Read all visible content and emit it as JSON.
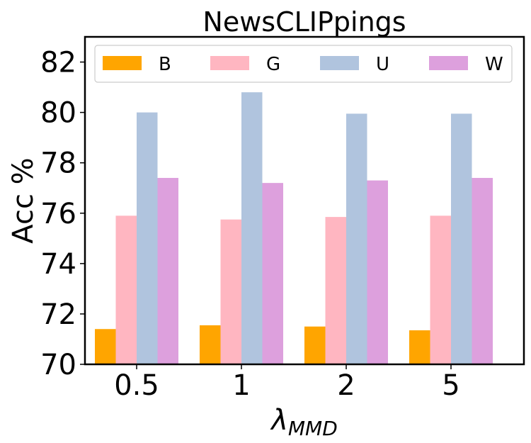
{
  "chart_data": {
    "type": "bar",
    "title": "NewsCLIPpings",
    "xlabel_main": "λ",
    "xlabel_sub": "MMD",
    "ylabel": "Acc %",
    "categories": [
      "0.5",
      "1",
      "2",
      "5"
    ],
    "ylim": [
      70,
      83
    ],
    "yticks": [
      70,
      72,
      74,
      76,
      78,
      80,
      82
    ],
    "grid": false,
    "legend_position": "top",
    "series": [
      {
        "name": "B",
        "color": "#FFA500",
        "values": [
          71.4,
          71.55,
          71.5,
          71.35
        ]
      },
      {
        "name": "G",
        "color": "#FFB6C1",
        "values": [
          75.9,
          75.75,
          75.85,
          75.9
        ]
      },
      {
        "name": "U",
        "color": "#B0C4DE",
        "values": [
          80.0,
          80.8,
          79.95,
          79.95
        ]
      },
      {
        "name": "W",
        "color": "#DDA0DD",
        "values": [
          77.4,
          77.2,
          77.3,
          77.4
        ]
      }
    ]
  }
}
